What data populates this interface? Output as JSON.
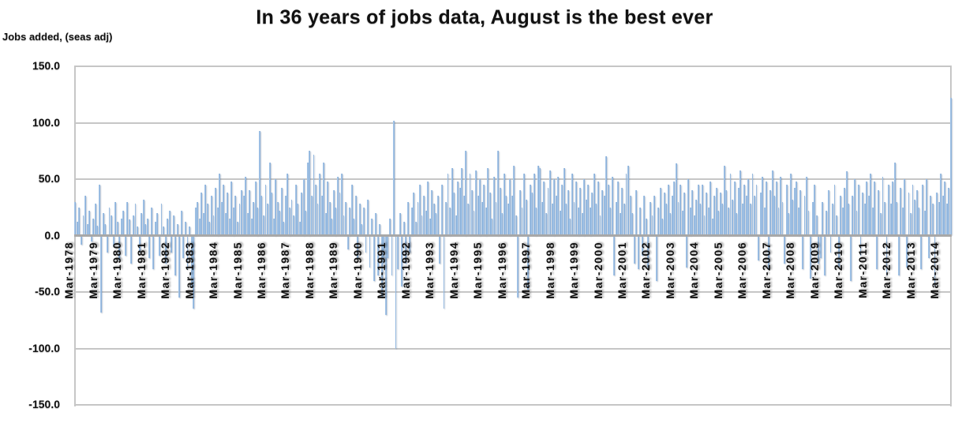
{
  "chart_data": {
    "type": "bar",
    "title": "In 36 years of jobs data, August is the best ever",
    "ylabel": "Jobs added, (seas adj)",
    "xlabel": "",
    "ylim": [
      -150,
      150
    ],
    "ytick_step": 50,
    "ytick_labels": [
      "150.0",
      "100.0",
      "50.0",
      "0.0",
      "-50.0",
      "-100.0",
      "-150.0"
    ],
    "grid": true,
    "legend": false,
    "x_unit": "month",
    "x_range": "Mar-1978 to Aug-2014",
    "x_tick_every_n_points": 12,
    "x_tick_labels": [
      "Mar-1978",
      "Mar-1979",
      "Mar-1980",
      "Mar-1981",
      "Mar-1982",
      "Mar-1983",
      "Mar-1984",
      "Mar-1985",
      "Mar-1986",
      "Mar-1987",
      "Mar-1988",
      "Mar-1989",
      "Mar-1990",
      "Mar-1991",
      "Mar-1992",
      "Mar-1993",
      "Mar-1994",
      "Mar-1995",
      "Mar-1996",
      "Mar-1997",
      "Mar-1998",
      "Mar-1999",
      "Mar-2000",
      "Mar-2001",
      "Mar-2002",
      "Mar-2003",
      "Mar-2004",
      "Mar-2005",
      "Mar-2006",
      "Mar-2007",
      "Mar-2008",
      "Mar-2009",
      "Mar-2010",
      "Mar-2011",
      "Mar-2012",
      "Mar-2013",
      "Mar-2014"
    ],
    "colors": {
      "bar_light": "#bad4ee",
      "bar_dark": "#7aa3d1",
      "gridline": "#c6c6c6",
      "zero_axis": "#a8a8a8",
      "text": "#111111"
    },
    "values": [
      30,
      12,
      25,
      -8,
      18,
      35,
      10,
      22,
      -5,
      15,
      28,
      9,
      45,
      -68,
      20,
      10,
      -15,
      25,
      18,
      -10,
      30,
      12,
      -22,
      15,
      22,
      -18,
      30,
      14,
      -25,
      18,
      28,
      8,
      -15,
      20,
      32,
      10,
      15,
      -20,
      25,
      -30,
      12,
      20,
      -18,
      28,
      8,
      -25,
      15,
      22,
      -15,
      18,
      -35,
      10,
      -55,
      22,
      -20,
      12,
      -30,
      8,
      -45,
      -65,
      25,
      30,
      15,
      38,
      20,
      45,
      28,
      12,
      35,
      18,
      42,
      25,
      55,
      30,
      45,
      20,
      38,
      15,
      48,
      25,
      35,
      12,
      28,
      40,
      35,
      52,
      20,
      40,
      15,
      30,
      48,
      25,
      93,
      35,
      18,
      45,
      28,
      65,
      38,
      15,
      50,
      30,
      22,
      42,
      12,
      35,
      55,
      25,
      32,
      18,
      45,
      28,
      12,
      38,
      50,
      22,
      65,
      75,
      35,
      72,
      45,
      28,
      55,
      35,
      65,
      20,
      48,
      30,
      15,
      40,
      25,
      52,
      38,
      55,
      18,
      30,
      -12,
      25,
      45,
      15,
      35,
      -20,
      28,
      10,
      25,
      -15,
      32,
      -28,
      15,
      -40,
      20,
      -35,
      10,
      -55,
      -25,
      -70,
      -20,
      15,
      -35,
      102,
      -100,
      -30,
      20,
      -45,
      12,
      -25,
      30,
      -15,
      25,
      38,
      12,
      30,
      45,
      18,
      35,
      22,
      48,
      15,
      40,
      28,
      20,
      35,
      -25,
      45,
      -65,
      30,
      55,
      25,
      60,
      38,
      18,
      48,
      42,
      60,
      35,
      75,
      28,
      55,
      40,
      22,
      58,
      35,
      50,
      30,
      45,
      25,
      60,
      38,
      15,
      52,
      30,
      75,
      42,
      20,
      55,
      35,
      28,
      50,
      35,
      62,
      18,
      -55,
      40,
      25,
      55,
      32,
      -48,
      45,
      38,
      55,
      25,
      62,
      60,
      30,
      48,
      20,
      42,
      58,
      28,
      50,
      35,
      52,
      22,
      45,
      60,
      28,
      40,
      15,
      55,
      30,
      48,
      25,
      42,
      20,
      50,
      32,
      45,
      25,
      38,
      55,
      28,
      48,
      18,
      40,
      35,
      70,
      45,
      25,
      52,
      -35,
      30,
      48,
      20,
      42,
      28,
      55,
      62,
      35,
      20,
      -25,
      40,
      -30,
      25,
      -18,
      35,
      15,
      -28,
      30,
      18,
      35,
      -40,
      25,
      42,
      15,
      38,
      28,
      45,
      20,
      35,
      48,
      64,
      30,
      45,
      22,
      38,
      -28,
      50,
      25,
      40,
      18,
      32,
      45,
      28,
      45,
      18,
      38,
      25,
      48,
      15,
      35,
      42,
      22,
      38,
      28,
      62,
      40,
      25,
      55,
      32,
      48,
      20,
      42,
      58,
      28,
      45,
      35,
      50,
      28,
      55,
      35,
      45,
      -22,
      38,
      52,
      25,
      48,
      -30,
      40,
      58,
      35,
      48,
      25,
      52,
      30,
      -25,
      45,
      20,
      55,
      32,
      42,
      48,
      25,
      40,
      -30,
      35,
      52,
      22,
      -38,
      30,
      45,
      18,
      -25,
      -20,
      30,
      -35,
      22,
      40,
      -15,
      28,
      45,
      18,
      -28,
      35,
      25,
      42,
      57,
      28,
      -40,
      35,
      50,
      22,
      45,
      -18,
      38,
      28,
      48,
      35,
      55,
      25,
      48,
      -30,
      40,
      20,
      52,
      30,
      -35,
      45,
      28,
      48,
      65,
      30,
      -35,
      42,
      25,
      50,
      -28,
      38,
      20,
      45,
      32,
      40,
      25,
      -30,
      45,
      22,
      50,
      -20,
      35,
      28,
      -45,
      38,
      30,
      55,
      35,
      48,
      28,
      42,
      122
    ]
  }
}
